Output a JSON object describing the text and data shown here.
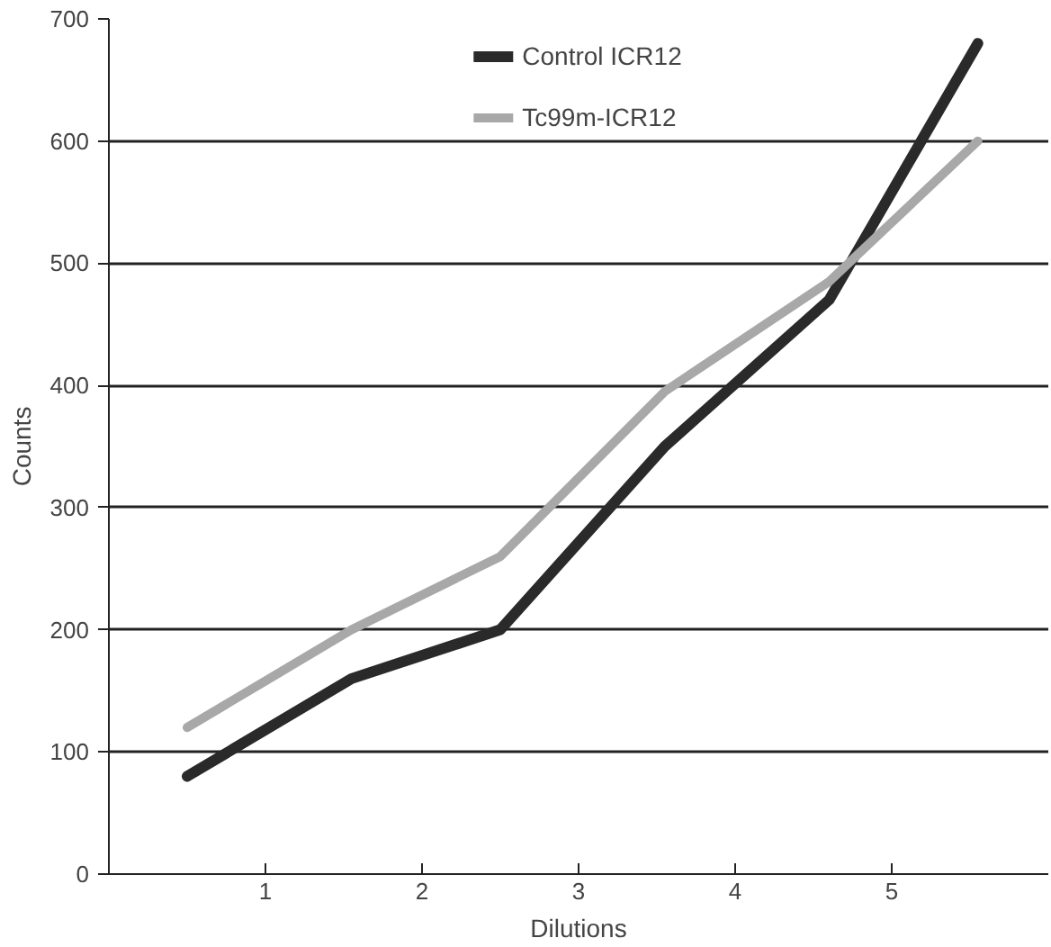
{
  "chart_data": {
    "type": "line",
    "xlabel": "Dilutions",
    "ylabel": "Counts",
    "xlim": [
      0,
      6
    ],
    "xticks": [
      1,
      2,
      3,
      4,
      5
    ],
    "ylim": [
      0,
      700
    ],
    "yticks": [
      0,
      100,
      200,
      300,
      400,
      500,
      600,
      700
    ],
    "grid": "y",
    "legend": "top",
    "line_style": "solid",
    "marker": "none",
    "series": [
      {
        "name": "Control ICR12",
        "color": "#2a2a2a",
        "x": [
          0.5,
          1.55,
          2.5,
          3.55,
          4.6,
          5.55
        ],
        "values": [
          80,
          160,
          200,
          350,
          470,
          680
        ]
      },
      {
        "name": "Tc99m-ICR12",
        "color": "#a8a8a8",
        "x": [
          0.5,
          1.55,
          2.5,
          3.55,
          4.6,
          5.55
        ],
        "values": [
          120,
          200,
          260,
          395,
          485,
          600
        ]
      }
    ]
  }
}
